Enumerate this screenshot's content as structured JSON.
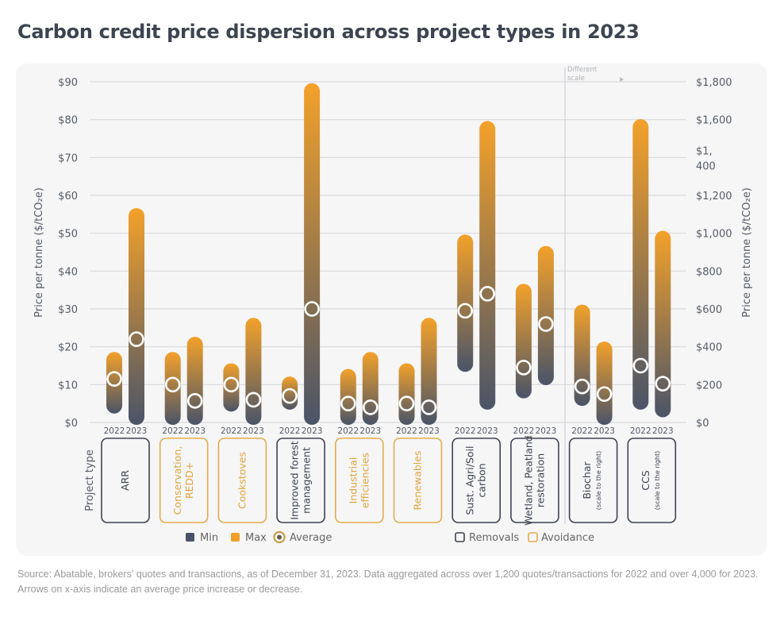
{
  "title": "Carbon credit price dispersion across project types in 2023",
  "source": "Source: Abatable, brokers' quotes and transactions, as of December 31, 2023. Data aggregated across over 1,200 quotes/transactions for 2022 and over 4,000 for 2023. Arrows on x-axis indicate an average price increase or decrease.",
  "colors": {
    "max": "#f0a02a",
    "min": "#4a5468",
    "removals": "#3d4451",
    "avoidance": "#e3ac4c",
    "grid": "#d9d9dc",
    "text": "#555b66"
  },
  "chart_data": {
    "type": "range-bar",
    "title": "Carbon credit price dispersion across project types in 2023",
    "ylabel": "Price per tonne ($/tCO₂e)",
    "ylabel_right": "Price per tonne ($/tCO₂e)",
    "ylim": [
      0,
      90
    ],
    "ylim_right": [
      0,
      1800
    ],
    "yticks": [
      "$0",
      "$10",
      "$20",
      "$30",
      "$40",
      "$50",
      "$60",
      "$70",
      "$80",
      "$90"
    ],
    "yticks_right": [
      "$0",
      "$200",
      "$400",
      "$600",
      "$800",
      "$1,000",
      "$1,200",
      "$1,400",
      "$1,600",
      "$1,800"
    ],
    "yticks_right_display": [
      "$0",
      "$200",
      "$400",
      "$600",
      "$800",
      "$1,000",
      "$1,200",
      "$1,\n400",
      "$1,600",
      "$1,800"
    ],
    "grid": true,
    "xlabel": "Project type",
    "years": [
      "2022",
      "2023"
    ],
    "divider_label": [
      "Different",
      "scale"
    ],
    "categories": [
      {
        "name": [
          "ARR"
        ],
        "group": "removals",
        "scale": "left",
        "data": [
          {
            "year": "2022",
            "min": 3,
            "max": 18,
            "avg": 11.5
          },
          {
            "year": "2023",
            "min": 0,
            "max": 56,
            "avg": 22
          }
        ]
      },
      {
        "name": [
          "Conservation,",
          "REDD+"
        ],
        "group": "avoidance",
        "scale": "left",
        "data": [
          {
            "year": "2022",
            "min": 0,
            "max": 18,
            "avg": 10
          },
          {
            "year": "2023",
            "min": 0,
            "max": 22,
            "avg": 5.7
          }
        ]
      },
      {
        "name": [
          "Cookstoves"
        ],
        "group": "avoidance",
        "scale": "left",
        "data": [
          {
            "year": "2022",
            "min": 3.5,
            "max": 15,
            "avg": 10
          },
          {
            "year": "2023",
            "min": 0,
            "max": 27,
            "avg": 6
          }
        ]
      },
      {
        "name": [
          "Improved forest",
          "management"
        ],
        "group": "removals",
        "scale": "left",
        "data": [
          {
            "year": "2022",
            "min": 4,
            "max": 11.5,
            "avg": 7
          },
          {
            "year": "2023",
            "min": 0,
            "max": 89,
            "avg": 30
          }
        ]
      },
      {
        "name": [
          "Industrial",
          "efficiencies"
        ],
        "group": "avoidance",
        "scale": "left",
        "data": [
          {
            "year": "2022",
            "min": 0,
            "max": 13.5,
            "avg": 5
          },
          {
            "year": "2023",
            "min": 0,
            "max": 18,
            "avg": 4
          }
        ]
      },
      {
        "name": [
          "Renewables"
        ],
        "group": "avoidance",
        "scale": "left",
        "data": [
          {
            "year": "2022",
            "min": 0,
            "max": 15,
            "avg": 5
          },
          {
            "year": "2023",
            "min": 0,
            "max": 27,
            "avg": 4
          }
        ]
      },
      {
        "name": [
          "Sust. Agri/Soil",
          "carbon"
        ],
        "group": "removals",
        "scale": "left",
        "data": [
          {
            "year": "2022",
            "min": 14,
            "max": 49,
            "avg": 29.5
          },
          {
            "year": "2023",
            "min": 4,
            "max": 79,
            "avg": 34
          }
        ]
      },
      {
        "name": [
          "Wetland, Peatland",
          "restoration"
        ],
        "group": "removals",
        "scale": "left",
        "data": [
          {
            "year": "2022",
            "min": 7,
            "max": 36,
            "avg": 14.5
          },
          {
            "year": "2023",
            "min": 10.5,
            "max": 46,
            "avg": 26
          }
        ]
      },
      {
        "name": [
          "Biochar"
        ],
        "note": "(scale to the right)",
        "group": "removals",
        "scale": "right",
        "data": [
          {
            "year": "2022",
            "min": 100,
            "max": 610,
            "avg": 190
          },
          {
            "year": "2023",
            "min": 0,
            "max": 415,
            "avg": 150
          }
        ]
      },
      {
        "name": [
          "CCS"
        ],
        "note": "(scale to the right)",
        "group": "removals",
        "scale": "right",
        "data": [
          {
            "year": "2022",
            "min": 80,
            "max": 1590,
            "avg": 300
          },
          {
            "year": "2023",
            "min": 40,
            "max": 1000,
            "avg": 205
          }
        ]
      }
    ],
    "legend": {
      "placement": "bottom",
      "series": [
        {
          "label": "Min",
          "icon": "square"
        },
        {
          "label": "Max",
          "icon": "square"
        },
        {
          "label": "Average",
          "icon": "ring"
        }
      ],
      "groups": [
        {
          "label": "Removals",
          "icon": "outlined-square"
        },
        {
          "label": "Avoidance",
          "icon": "outlined-square"
        }
      ]
    }
  }
}
